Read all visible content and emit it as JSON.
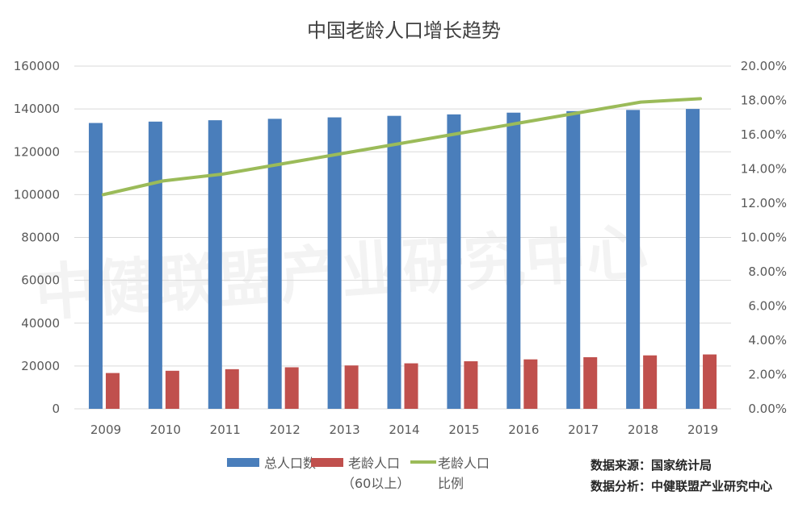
{
  "chart_data": {
    "type": "bar+line",
    "title": "中国老龄人口增长趋势",
    "categories": [
      "2009",
      "2010",
      "2011",
      "2012",
      "2013",
      "2014",
      "2015",
      "2016",
      "2017",
      "2018",
      "2019"
    ],
    "series": [
      {
        "name": "总人口数",
        "type": "bar",
        "axis": "left",
        "color": "#4a7ebb",
        "values": [
          133450,
          134091,
          134735,
          135404,
          136072,
          136782,
          137462,
          138271,
          139008,
          139538,
          140005
        ]
      },
      {
        "name": "老龄人口（60以上）",
        "name_lines": [
          "老龄人口",
          "（60以上）"
        ],
        "type": "bar",
        "axis": "left",
        "color": "#c0504d",
        "values": [
          16714,
          17765,
          18499,
          19390,
          20243,
          21242,
          22200,
          23086,
          24090,
          24949,
          25388
        ]
      },
      {
        "name": "老龄人口比例",
        "name_lines": [
          "老龄人口",
          "比例"
        ],
        "type": "line",
        "axis": "right",
        "color": "#9bbb59",
        "values": [
          12.5,
          13.3,
          13.7,
          14.3,
          14.9,
          15.5,
          16.1,
          16.7,
          17.3,
          17.9,
          18.1
        ]
      }
    ],
    "ylim": [
      0,
      160000
    ],
    "yticks": [
      "0",
      "20000",
      "40000",
      "60000",
      "80000",
      "100000",
      "120000",
      "140000",
      "160000"
    ],
    "y2lim": [
      0,
      20
    ],
    "y2ticks": [
      "0.00%",
      "2.00%",
      "4.00%",
      "6.00%",
      "8.00%",
      "10.00%",
      "12.00%",
      "14.00%",
      "16.00%",
      "18.00%",
      "20.00%"
    ],
    "grid": true,
    "legend": "bottom"
  },
  "source": {
    "line1": "数据来源：国家统计局",
    "line2": "数据分析：中健联盟产业研究中心"
  },
  "watermark": "中健联盟产业研究中心"
}
